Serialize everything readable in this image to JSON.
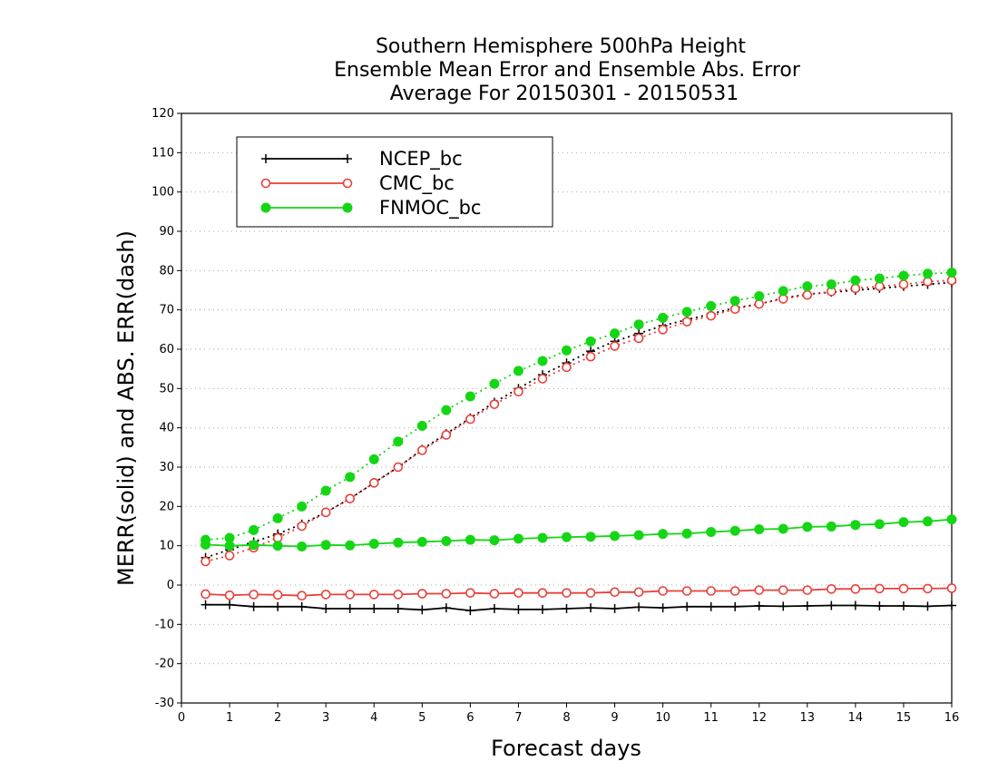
{
  "chart_data": {
    "type": "line",
    "title_lines": [
      "Southern Hemisphere 500hPa Height",
      "Ensemble Mean Error and Ensemble Abs. Error",
      "Average For 20150301 - 20150531"
    ],
    "xlabel": "Forecast days",
    "ylabel": "MERR(solid) and ABS. ERR(dash)",
    "xlim": [
      0,
      16
    ],
    "ylim": [
      -30,
      120
    ],
    "x_ticks": [
      0,
      1,
      2,
      3,
      4,
      5,
      6,
      7,
      8,
      9,
      10,
      11,
      12,
      13,
      14,
      15,
      16
    ],
    "y_ticks": [
      -30,
      -20,
      -10,
      0,
      10,
      20,
      30,
      40,
      50,
      60,
      70,
      80,
      90,
      100,
      110,
      120
    ],
    "grid": "horizontal dotted",
    "legend_position": "top-left",
    "x": [
      0.5,
      1,
      1.5,
      2,
      2.5,
      3,
      3.5,
      4,
      4.5,
      5,
      5.5,
      6,
      6.5,
      7,
      7.5,
      8,
      8.5,
      9,
      9.5,
      10,
      10.5,
      11,
      11.5,
      12,
      12.5,
      13,
      13.5,
      14,
      14.5,
      15,
      15.5,
      16
    ],
    "series": [
      {
        "name": "NCEP_bc",
        "color": "#000000",
        "marker": "plus",
        "merr": [
          -5,
          -5,
          -5.5,
          -5.5,
          -5.5,
          -6,
          -6,
          -6,
          -6,
          -6.3,
          -5.8,
          -6.5,
          -6,
          -6.2,
          -6.2,
          -6,
          -5.8,
          -6,
          -5.6,
          -5.8,
          -5.5,
          -5.5,
          -5.5,
          -5.3,
          -5.4,
          -5.3,
          -5.2,
          -5.2,
          -5.3,
          -5.3,
          -5.4,
          -5.2
        ],
        "abs_err": [
          7,
          9,
          11,
          13,
          15.5,
          18.5,
          22,
          26,
          30,
          34.5,
          38.5,
          42.5,
          46.5,
          50,
          53.5,
          56.5,
          59.5,
          62,
          64,
          66,
          67.5,
          69,
          70.5,
          71.5,
          73,
          74,
          74.5,
          75,
          75.5,
          76,
          76.5,
          77
        ]
      },
      {
        "name": "CMC_bc",
        "color": "#e8403a",
        "marker": "open-circle",
        "merr": [
          -2.3,
          -2.6,
          -2.4,
          -2.5,
          -2.7,
          -2.4,
          -2.4,
          -2.4,
          -2.4,
          -2.2,
          -2.2,
          -2,
          -2.2,
          -2,
          -2,
          -2,
          -2,
          -1.8,
          -1.8,
          -1.5,
          -1.5,
          -1.5,
          -1.5,
          -1.3,
          -1.3,
          -1.3,
          -1,
          -1,
          -0.9,
          -0.9,
          -0.9,
          -0.8
        ],
        "abs_err": [
          6,
          7.5,
          9.5,
          12,
          15,
          18.5,
          22,
          26,
          30,
          34.3,
          38.2,
          42.2,
          46,
          49.2,
          52.5,
          55.4,
          58.1,
          60.8,
          62.8,
          65,
          67,
          68.5,
          70.2,
          71.5,
          72.8,
          73.8,
          74.7,
          75.5,
          76,
          76.5,
          77.2,
          77.5
        ]
      },
      {
        "name": "FNMOC_bc",
        "color": "#15d615",
        "marker": "filled-circle",
        "merr": [
          10.3,
          10,
          10.2,
          10,
          9.8,
          10.2,
          10.1,
          10.5,
          10.8,
          11,
          11.2,
          11.5,
          11.4,
          11.8,
          12,
          12.2,
          12.3,
          12.5,
          12.7,
          13,
          13.1,
          13.5,
          13.8,
          14.2,
          14.3,
          14.8,
          14.9,
          15.3,
          15.5,
          16,
          16.2,
          16.7
        ],
        "abs_err": [
          11.5,
          12,
          14,
          17,
          20,
          24,
          27.5,
          32,
          36.5,
          40.5,
          44.5,
          48,
          51.2,
          54.5,
          57,
          59.7,
          62,
          64,
          66.3,
          68,
          69.5,
          71,
          72.3,
          73.5,
          74.8,
          76,
          76.5,
          77.5,
          78,
          78.7,
          79.2,
          79.5
        ]
      }
    ]
  }
}
